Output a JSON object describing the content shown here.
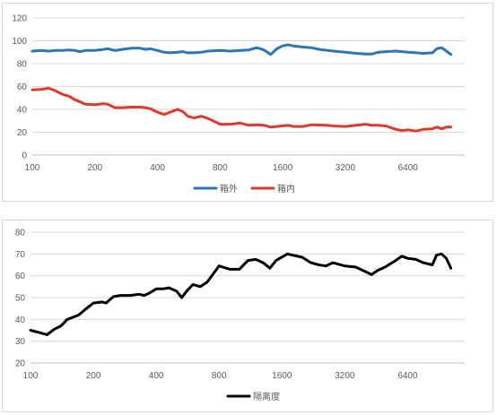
{
  "chart_data": [
    {
      "type": "line",
      "title": "",
      "xlabel": "",
      "ylabel": "",
      "x_scale": "log2",
      "xlim": [
        100,
        12000
      ],
      "ylim": [
        0,
        120
      ],
      "x_ticks": [
        100,
        200,
        400,
        800,
        1600,
        3200,
        6400
      ],
      "x_tick_labels": [
        "100",
        "200",
        "400",
        "800",
        "1600",
        "3200",
        "6400"
      ],
      "y_ticks": [
        0,
        20,
        40,
        60,
        80,
        100,
        120
      ],
      "y_tick_labels": [
        "0",
        "20",
        "40",
        "60",
        "80",
        "100",
        "120"
      ],
      "grid": "horizontal",
      "legend": "bottom",
      "series": [
        {
          "name": "箱外",
          "color": "#2E75B6",
          "points": [
            [
              100,
              91
            ],
            [
              110,
              91.5
            ],
            [
              120,
              91
            ],
            [
              130,
              91.5
            ],
            [
              140,
              91.5
            ],
            [
              150,
              92
            ],
            [
              160,
              91.5
            ],
            [
              170,
              90.5
            ],
            [
              180,
              91.5
            ],
            [
              200,
              91.5
            ],
            [
              220,
              92.5
            ],
            [
              230,
              93
            ],
            [
              250,
              91.5
            ],
            [
              270,
              92.5
            ],
            [
              300,
              93.5
            ],
            [
              330,
              93.5
            ],
            [
              350,
              92.5
            ],
            [
              370,
              93
            ],
            [
              400,
              91.5
            ],
            [
              430,
              90
            ],
            [
              460,
              89.5
            ],
            [
              500,
              90
            ],
            [
              530,
              90.5
            ],
            [
              560,
              89.5
            ],
            [
              600,
              89.5
            ],
            [
              650,
              90
            ],
            [
              700,
              91
            ],
            [
              800,
              91.5
            ],
            [
              900,
              91
            ],
            [
              1000,
              91.5
            ],
            [
              1100,
              92
            ],
            [
              1200,
              94
            ],
            [
              1300,
              92
            ],
            [
              1400,
              88
            ],
            [
              1500,
              93
            ],
            [
              1600,
              95.5
            ],
            [
              1700,
              96.5
            ],
            [
              1800,
              95.5
            ],
            [
              2000,
              94.5
            ],
            [
              2200,
              94
            ],
            [
              2400,
              92.5
            ],
            [
              2800,
              91
            ],
            [
              3200,
              90
            ],
            [
              3600,
              89
            ],
            [
              4000,
              88.5
            ],
            [
              4300,
              88.5
            ],
            [
              4600,
              90
            ],
            [
              5000,
              90.5
            ],
            [
              5600,
              91
            ],
            [
              6400,
              90
            ],
            [
              7000,
              89.5
            ],
            [
              7600,
              89
            ],
            [
              8400,
              89.5
            ],
            [
              8800,
              93
            ],
            [
              9300,
              94
            ],
            [
              9800,
              91
            ],
            [
              10300,
              88
            ]
          ]
        },
        {
          "name": "箱内",
          "color": "#E03A2E",
          "points": [
            [
              100,
              57
            ],
            [
              110,
              57.5
            ],
            [
              120,
              58.5
            ],
            [
              130,
              56
            ],
            [
              140,
              53
            ],
            [
              150,
              51.5
            ],
            [
              160,
              48.5
            ],
            [
              170,
              46.5
            ],
            [
              180,
              44.5
            ],
            [
              200,
              44
            ],
            [
              220,
              45
            ],
            [
              230,
              44.5
            ],
            [
              250,
              41.5
            ],
            [
              270,
              41.5
            ],
            [
              300,
              42
            ],
            [
              330,
              42
            ],
            [
              350,
              41.5
            ],
            [
              370,
              40.5
            ],
            [
              400,
              37.5
            ],
            [
              430,
              35.5
            ],
            [
              460,
              37.5
            ],
            [
              500,
              40
            ],
            [
              530,
              38
            ],
            [
              560,
              34
            ],
            [
              600,
              32.5
            ],
            [
              650,
              34
            ],
            [
              700,
              32
            ],
            [
              800,
              27
            ],
            [
              900,
              27
            ],
            [
              1000,
              28
            ],
            [
              1100,
              26
            ],
            [
              1200,
              26.5
            ],
            [
              1300,
              26
            ],
            [
              1400,
              24.5
            ],
            [
              1500,
              25
            ],
            [
              1700,
              26
            ],
            [
              1800,
              25
            ],
            [
              2000,
              25
            ],
            [
              2200,
              26.5
            ],
            [
              2600,
              26
            ],
            [
              2800,
              25.5
            ],
            [
              3200,
              25
            ],
            [
              3600,
              26
            ],
            [
              4000,
              27
            ],
            [
              4300,
              26
            ],
            [
              4600,
              26
            ],
            [
              5000,
              25.5
            ],
            [
              5600,
              22.5
            ],
            [
              6000,
              21.5
            ],
            [
              6400,
              22
            ],
            [
              7000,
              21
            ],
            [
              7600,
              22.5
            ],
            [
              8400,
              23
            ],
            [
              8800,
              24.5
            ],
            [
              9300,
              23
            ],
            [
              9800,
              24.5
            ],
            [
              10300,
              24.5
            ]
          ]
        }
      ]
    },
    {
      "type": "line",
      "title": "",
      "xlabel": "",
      "ylabel": "",
      "x_scale": "log2",
      "xlim": [
        100,
        12000
      ],
      "ylim": [
        20,
        80
      ],
      "x_ticks": [
        100,
        200,
        400,
        800,
        1600,
        3200,
        6400
      ],
      "x_tick_labels": [
        "100",
        "200",
        "400",
        "800",
        "1600",
        "3200",
        "6400"
      ],
      "y_ticks": [
        20,
        30,
        40,
        50,
        60,
        70,
        80
      ],
      "y_tick_labels": [
        "20",
        "30",
        "40",
        "50",
        "60",
        "70",
        "80"
      ],
      "grid": "horizontal",
      "legend": "bottom",
      "series": [
        {
          "name": "隔离度",
          "color": "#000000",
          "points": [
            [
              100,
              35
            ],
            [
              110,
              34
            ],
            [
              120,
              33
            ],
            [
              130,
              35.5
            ],
            [
              140,
              37
            ],
            [
              150,
              40
            ],
            [
              160,
              41
            ],
            [
              170,
              42
            ],
            [
              180,
              44
            ],
            [
              200,
              47.5
            ],
            [
              220,
              48
            ],
            [
              230,
              47.5
            ],
            [
              250,
              50.5
            ],
            [
              270,
              51
            ],
            [
              300,
              51
            ],
            [
              330,
              51.5
            ],
            [
              350,
              51
            ],
            [
              370,
              52
            ],
            [
              400,
              54
            ],
            [
              430,
              54
            ],
            [
              460,
              54.5
            ],
            [
              500,
              53
            ],
            [
              530,
              50
            ],
            [
              560,
              53
            ],
            [
              600,
              56
            ],
            [
              650,
              55
            ],
            [
              700,
              57
            ],
            [
              800,
              64.5
            ],
            [
              900,
              63
            ],
            [
              1000,
              63
            ],
            [
              1100,
              67
            ],
            [
              1200,
              67.5
            ],
            [
              1300,
              66
            ],
            [
              1400,
              63.5
            ],
            [
              1500,
              67
            ],
            [
              1700,
              70
            ],
            [
              1800,
              69.5
            ],
            [
              2000,
              68.5
            ],
            [
              2200,
              66
            ],
            [
              2400,
              65
            ],
            [
              2600,
              64.5
            ],
            [
              2800,
              66
            ],
            [
              3200,
              64.5
            ],
            [
              3600,
              64
            ],
            [
              4000,
              62
            ],
            [
              4300,
              60.5
            ],
            [
              4600,
              62.5
            ],
            [
              5000,
              64
            ],
            [
              5600,
              67
            ],
            [
              6000,
              69
            ],
            [
              6400,
              68
            ],
            [
              7000,
              67.5
            ],
            [
              7600,
              66
            ],
            [
              8400,
              65
            ],
            [
              8800,
              69.5
            ],
            [
              9300,
              70
            ],
            [
              9800,
              68
            ],
            [
              10300,
              63.5
            ]
          ]
        }
      ]
    }
  ]
}
